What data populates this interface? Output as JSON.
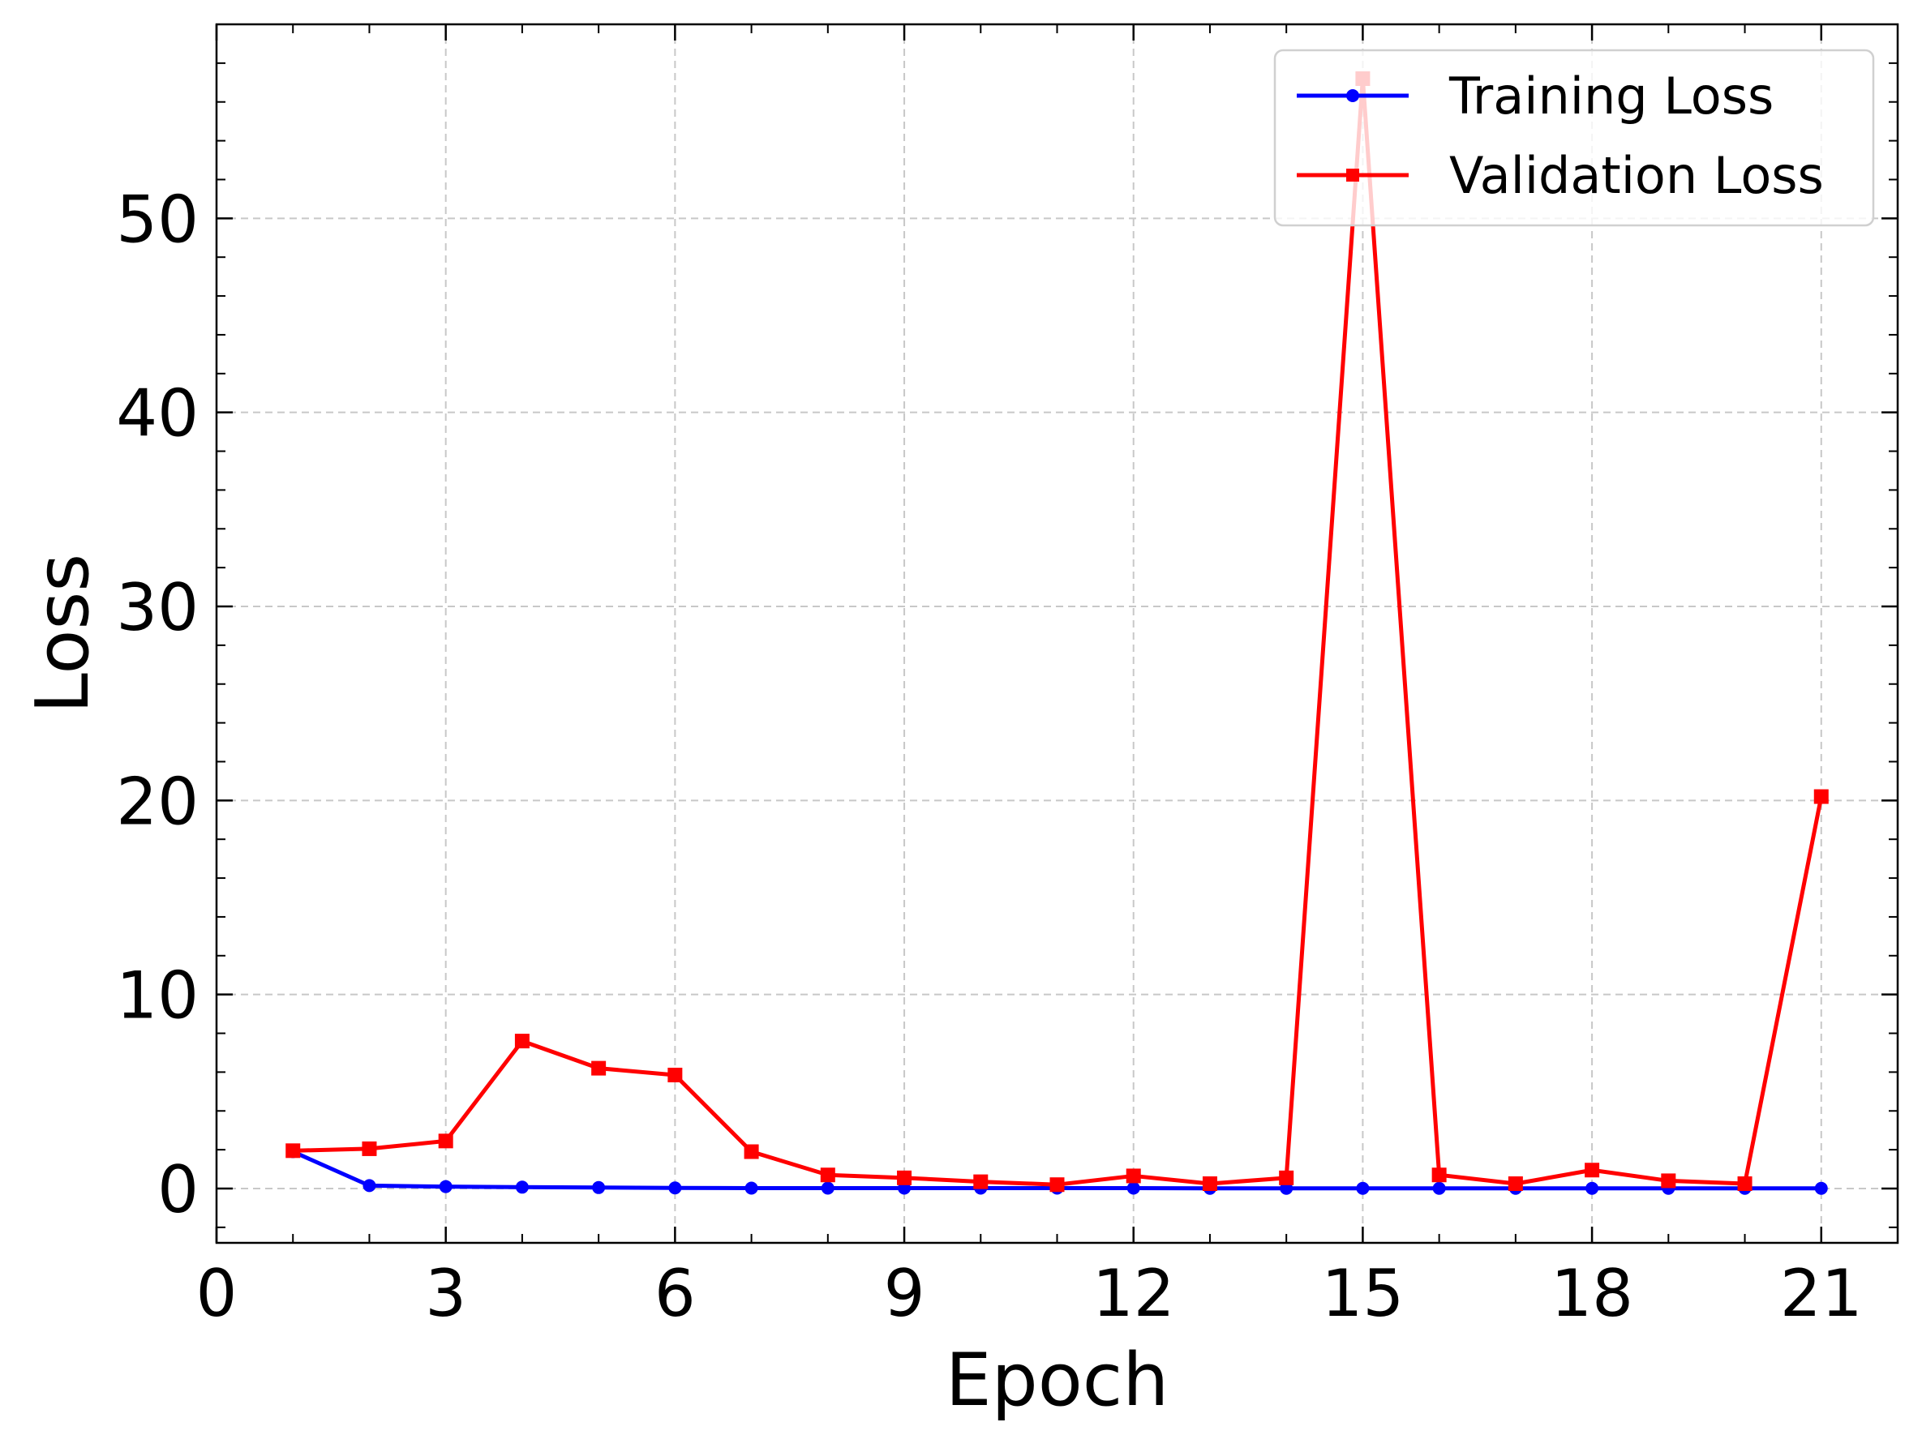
{
  "chart_data": {
    "type": "line",
    "title": "",
    "xlabel": "Epoch",
    "ylabel": "Loss",
    "xlim": [
      0,
      22
    ],
    "ylim": [
      -2.8,
      60
    ],
    "xticks": [
      0,
      3,
      6,
      9,
      12,
      15,
      18,
      21
    ],
    "yticks": [
      0,
      10,
      20,
      30,
      40,
      50
    ],
    "grid": true,
    "legend_position": "top-right",
    "series": [
      {
        "name": "Training Loss",
        "color": "#0000ff",
        "marker": "circle",
        "x": [
          1,
          2,
          3,
          4,
          5,
          6,
          7,
          8,
          9,
          10,
          11,
          12,
          13,
          14,
          15,
          16,
          17,
          18,
          19,
          20,
          21
        ],
        "y": [
          1.9,
          0.15,
          0.1,
          0.07,
          0.05,
          0.03,
          0.02,
          0.02,
          0.02,
          0.02,
          0.02,
          0.02,
          0.01,
          0.01,
          0.01,
          0.01,
          0.01,
          0.01,
          0.01,
          0.01,
          0.01
        ]
      },
      {
        "name": "Validation Loss",
        "color": "#ff0000",
        "marker": "square",
        "x": [
          1,
          2,
          3,
          4,
          5,
          6,
          7,
          8,
          9,
          10,
          11,
          12,
          13,
          14,
          15,
          16,
          17,
          18,
          19,
          20,
          21
        ],
        "y": [
          1.95,
          2.05,
          2.45,
          7.6,
          6.2,
          5.85,
          1.9,
          0.7,
          0.55,
          0.35,
          0.2,
          0.65,
          0.25,
          0.55,
          57.2,
          0.7,
          0.25,
          0.95,
          0.4,
          0.25,
          20.2
        ]
      }
    ]
  }
}
